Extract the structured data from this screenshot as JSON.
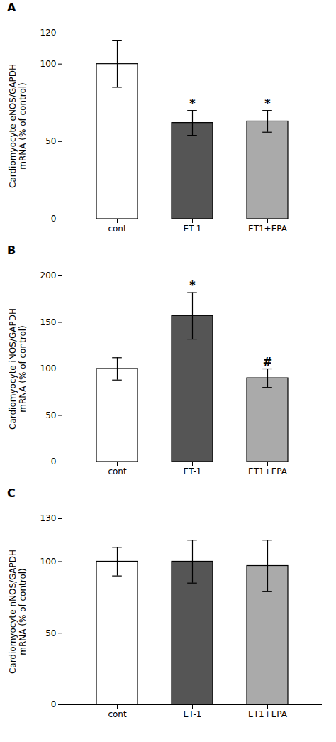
{
  "chart_data": [
    {
      "type": "bar",
      "title": "A",
      "ylabel": "Cardiomyocyte eNOS/GAPDH\nmRNA (% of control)",
      "categories": [
        "cont",
        "ET-1",
        "ET1+EPA"
      ],
      "values": [
        100,
        62,
        63
      ],
      "errors": [
        15,
        8,
        7
      ],
      "colors": [
        "#ffffff",
        "#555555",
        "#aaaaaa"
      ],
      "significance": [
        null,
        "*",
        "*"
      ],
      "ylim": [
        0,
        120
      ],
      "yticks": [
        0,
        50,
        100,
        120
      ],
      "grid": false
    },
    {
      "type": "bar",
      "title": "B",
      "ylabel": "Cardiomyocyte iNOS/GAPDH\nmRNA (% of control)",
      "categories": [
        "cont",
        "ET-1",
        "ET1+EPA"
      ],
      "values": [
        100,
        157,
        90
      ],
      "errors": [
        12,
        25,
        10
      ],
      "colors": [
        "#ffffff",
        "#555555",
        "#aaaaaa"
      ],
      "significance": [
        null,
        "*",
        "#"
      ],
      "ylim": [
        0,
        200
      ],
      "yticks": [
        0,
        50,
        100,
        150,
        200
      ],
      "grid": false
    },
    {
      "type": "bar",
      "title": "C",
      "ylabel": "Cardiomyocyte nNOS/GAPDH\nmRNA (% of control)",
      "categories": [
        "cont",
        "ET-1",
        "ET1+EPA"
      ],
      "values": [
        100,
        100,
        97
      ],
      "errors": [
        10,
        15,
        18
      ],
      "colors": [
        "#ffffff",
        "#555555",
        "#aaaaaa"
      ],
      "ylim": [
        0,
        130
      ],
      "yticks": [
        0,
        50,
        100,
        130
      ],
      "grid": false
    }
  ]
}
